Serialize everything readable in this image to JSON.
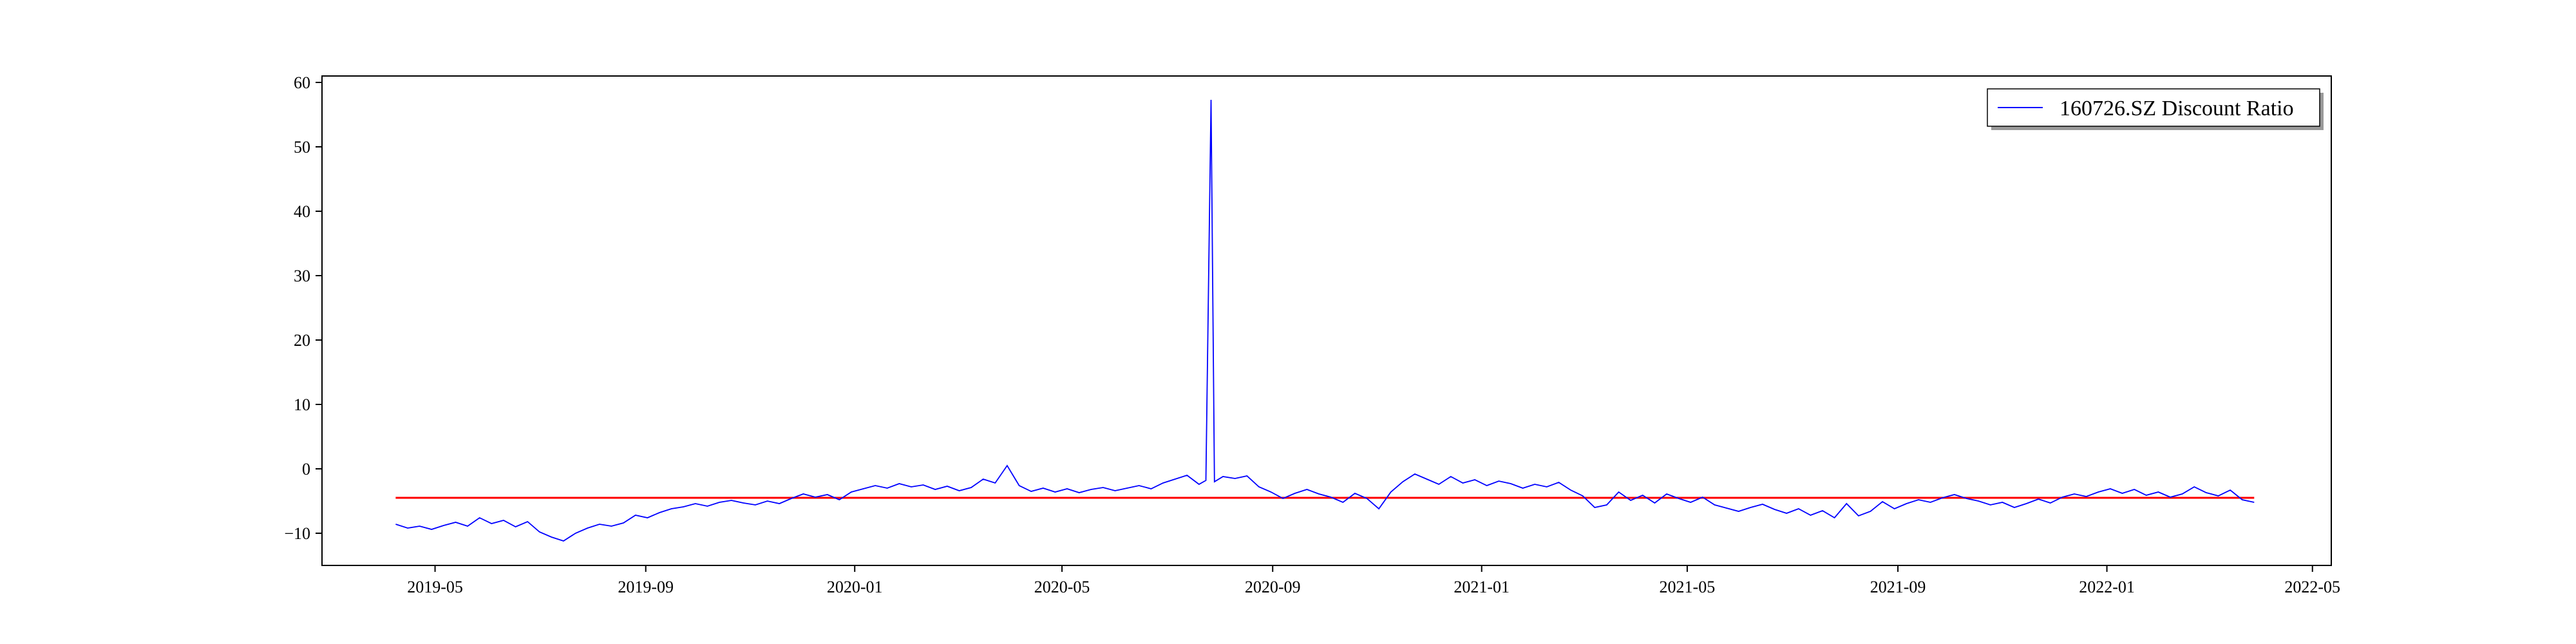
{
  "chart_data": {
    "type": "line",
    "title": "",
    "xlabel": "",
    "ylabel": "",
    "xlim": [
      "2019-02-24",
      "2022-05-12"
    ],
    "ylim": [
      -15,
      61
    ],
    "grid": false,
    "legend_position": "top-right",
    "x_ticks": [
      "2019-05-01",
      "2019-09-01",
      "2020-01-01",
      "2020-05-01",
      "2020-09-01",
      "2021-01-01",
      "2021-05-01",
      "2021-09-01",
      "2022-01-01",
      "2022-05-01"
    ],
    "x_tick_labels": [
      "2019-05",
      "2019-09",
      "2020-01",
      "2020-05",
      "2020-09",
      "2021-01",
      "2021-05",
      "2021-09",
      "2022-01",
      "2022-05"
    ],
    "y_ticks": [
      -10,
      0,
      10,
      20,
      30,
      40,
      50,
      60
    ],
    "y_tick_labels": [
      "−10",
      "0",
      "10",
      "20",
      "30",
      "40",
      "50",
      "60"
    ],
    "series": [
      {
        "name": "160726.SZ Discount Ratio",
        "color": "#0000ff",
        "points": [
          [
            "2019-04-08",
            -8.6
          ],
          [
            "2019-04-15",
            -9.2
          ],
          [
            "2019-04-22",
            -8.9
          ],
          [
            "2019-04-29",
            -9.4
          ],
          [
            "2019-05-06",
            -8.8
          ],
          [
            "2019-05-13",
            -8.3
          ],
          [
            "2019-05-20",
            -8.9
          ],
          [
            "2019-05-27",
            -7.6
          ],
          [
            "2019-06-03",
            -8.5
          ],
          [
            "2019-06-10",
            -8.0
          ],
          [
            "2019-06-17",
            -9.0
          ],
          [
            "2019-06-24",
            -8.2
          ],
          [
            "2019-07-01",
            -9.8
          ],
          [
            "2019-07-08",
            -10.6
          ],
          [
            "2019-07-15",
            -11.2
          ],
          [
            "2019-07-22",
            -10.0
          ],
          [
            "2019-07-29",
            -9.2
          ],
          [
            "2019-08-05",
            -8.6
          ],
          [
            "2019-08-12",
            -8.9
          ],
          [
            "2019-08-19",
            -8.4
          ],
          [
            "2019-08-26",
            -7.2
          ],
          [
            "2019-09-02",
            -7.6
          ],
          [
            "2019-09-09",
            -6.8
          ],
          [
            "2019-09-16",
            -6.2
          ],
          [
            "2019-09-23",
            -5.9
          ],
          [
            "2019-09-30",
            -5.4
          ],
          [
            "2019-10-07",
            -5.8
          ],
          [
            "2019-10-14",
            -5.2
          ],
          [
            "2019-10-21",
            -4.9
          ],
          [
            "2019-10-28",
            -5.3
          ],
          [
            "2019-11-04",
            -5.6
          ],
          [
            "2019-11-11",
            -5.0
          ],
          [
            "2019-11-18",
            -5.4
          ],
          [
            "2019-11-25",
            -4.6
          ],
          [
            "2019-12-02",
            -3.9
          ],
          [
            "2019-12-09",
            -4.4
          ],
          [
            "2019-12-16",
            -4.0
          ],
          [
            "2019-12-23",
            -4.8
          ],
          [
            "2019-12-30",
            -3.6
          ],
          [
            "2020-01-06",
            -3.1
          ],
          [
            "2020-01-13",
            -2.6
          ],
          [
            "2020-01-20",
            -3.0
          ],
          [
            "2020-01-27",
            -2.3
          ],
          [
            "2020-02-03",
            -2.8
          ],
          [
            "2020-02-10",
            -2.5
          ],
          [
            "2020-02-17",
            -3.2
          ],
          [
            "2020-02-24",
            -2.7
          ],
          [
            "2020-03-02",
            -3.4
          ],
          [
            "2020-03-09",
            -2.9
          ],
          [
            "2020-03-16",
            -1.6
          ],
          [
            "2020-03-23",
            -2.2
          ],
          [
            "2020-03-30",
            0.5
          ],
          [
            "2020-04-06",
            -2.6
          ],
          [
            "2020-04-13",
            -3.5
          ],
          [
            "2020-04-20",
            -3.0
          ],
          [
            "2020-04-27",
            -3.6
          ],
          [
            "2020-05-04",
            -3.1
          ],
          [
            "2020-05-11",
            -3.7
          ],
          [
            "2020-05-18",
            -3.2
          ],
          [
            "2020-05-25",
            -2.9
          ],
          [
            "2020-06-01",
            -3.4
          ],
          [
            "2020-06-08",
            -3.0
          ],
          [
            "2020-06-15",
            -2.6
          ],
          [
            "2020-06-22",
            -3.1
          ],
          [
            "2020-06-29",
            -2.2
          ],
          [
            "2020-07-06",
            -1.6
          ],
          [
            "2020-07-13",
            -1.0
          ],
          [
            "2020-07-20",
            -2.4
          ],
          [
            "2020-07-24",
            -1.8
          ],
          [
            "2020-07-27",
            57.3
          ],
          [
            "2020-07-29",
            -2.0
          ],
          [
            "2020-08-03",
            -1.2
          ],
          [
            "2020-08-10",
            -1.5
          ],
          [
            "2020-08-17",
            -1.1
          ],
          [
            "2020-08-24",
            -2.8
          ],
          [
            "2020-08-31",
            -3.6
          ],
          [
            "2020-09-07",
            -4.6
          ],
          [
            "2020-09-14",
            -3.8
          ],
          [
            "2020-09-21",
            -3.2
          ],
          [
            "2020-09-28",
            -3.9
          ],
          [
            "2020-10-05",
            -4.4
          ],
          [
            "2020-10-12",
            -5.2
          ],
          [
            "2020-10-19",
            -3.8
          ],
          [
            "2020-10-26",
            -4.6
          ],
          [
            "2020-11-02",
            -6.2
          ],
          [
            "2020-11-09",
            -3.6
          ],
          [
            "2020-11-16",
            -2.0
          ],
          [
            "2020-11-23",
            -0.8
          ],
          [
            "2020-11-30",
            -1.6
          ],
          [
            "2020-12-07",
            -2.4
          ],
          [
            "2020-12-14",
            -1.2
          ],
          [
            "2020-12-21",
            -2.2
          ],
          [
            "2020-12-28",
            -1.7
          ],
          [
            "2021-01-04",
            -2.6
          ],
          [
            "2021-01-11",
            -1.9
          ],
          [
            "2021-01-18",
            -2.3
          ],
          [
            "2021-01-25",
            -3.0
          ],
          [
            "2021-02-01",
            -2.4
          ],
          [
            "2021-02-08",
            -2.8
          ],
          [
            "2021-02-15",
            -2.1
          ],
          [
            "2021-02-22",
            -3.3
          ],
          [
            "2021-03-01",
            -4.2
          ],
          [
            "2021-03-08",
            -6.0
          ],
          [
            "2021-03-15",
            -5.6
          ],
          [
            "2021-03-22",
            -3.6
          ],
          [
            "2021-03-29",
            -4.9
          ],
          [
            "2021-04-05",
            -4.1
          ],
          [
            "2021-04-12",
            -5.3
          ],
          [
            "2021-04-19",
            -3.9
          ],
          [
            "2021-04-26",
            -4.6
          ],
          [
            "2021-05-03",
            -5.2
          ],
          [
            "2021-05-10",
            -4.4
          ],
          [
            "2021-05-17",
            -5.6
          ],
          [
            "2021-05-24",
            -6.1
          ],
          [
            "2021-05-31",
            -6.6
          ],
          [
            "2021-06-07",
            -6.0
          ],
          [
            "2021-06-14",
            -5.5
          ],
          [
            "2021-06-21",
            -6.3
          ],
          [
            "2021-06-28",
            -6.9
          ],
          [
            "2021-07-05",
            -6.2
          ],
          [
            "2021-07-12",
            -7.2
          ],
          [
            "2021-07-19",
            -6.5
          ],
          [
            "2021-07-26",
            -7.6
          ],
          [
            "2021-08-02",
            -5.4
          ],
          [
            "2021-08-09",
            -7.3
          ],
          [
            "2021-08-16",
            -6.6
          ],
          [
            "2021-08-23",
            -5.1
          ],
          [
            "2021-08-30",
            -6.2
          ],
          [
            "2021-09-06",
            -5.4
          ],
          [
            "2021-09-13",
            -4.8
          ],
          [
            "2021-09-20",
            -5.2
          ],
          [
            "2021-09-27",
            -4.5
          ],
          [
            "2021-10-04",
            -4.0
          ],
          [
            "2021-10-11",
            -4.6
          ],
          [
            "2021-10-18",
            -5.0
          ],
          [
            "2021-10-25",
            -5.6
          ],
          [
            "2021-11-01",
            -5.2
          ],
          [
            "2021-11-08",
            -6.0
          ],
          [
            "2021-11-15",
            -5.4
          ],
          [
            "2021-11-22",
            -4.7
          ],
          [
            "2021-11-29",
            -5.3
          ],
          [
            "2021-12-06",
            -4.4
          ],
          [
            "2021-12-13",
            -3.9
          ],
          [
            "2021-12-20",
            -4.3
          ],
          [
            "2021-12-27",
            -3.6
          ],
          [
            "2022-01-03",
            -3.1
          ],
          [
            "2022-01-10",
            -3.8
          ],
          [
            "2022-01-17",
            -3.2
          ],
          [
            "2022-01-24",
            -4.1
          ],
          [
            "2022-01-31",
            -3.6
          ],
          [
            "2022-02-07",
            -4.4
          ],
          [
            "2022-02-14",
            -3.9
          ],
          [
            "2022-02-21",
            -2.8
          ],
          [
            "2022-02-28",
            -3.7
          ],
          [
            "2022-03-07",
            -4.2
          ],
          [
            "2022-03-14",
            -3.3
          ],
          [
            "2022-03-21",
            -4.8
          ],
          [
            "2022-03-28",
            -5.2
          ]
        ]
      }
    ],
    "reference_line": {
      "color": "#ff0000",
      "y": -4.5,
      "x_start": "2019-04-08",
      "x_end": "2022-03-28"
    }
  }
}
